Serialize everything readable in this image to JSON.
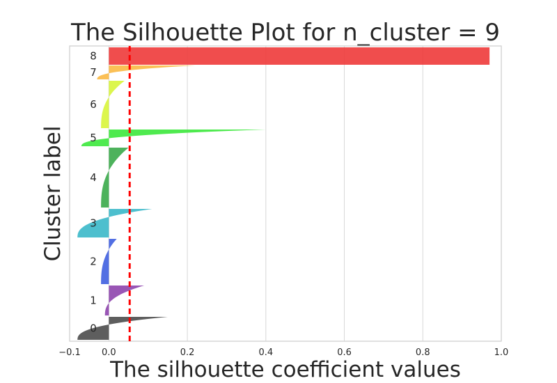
{
  "chart_data": {
    "type": "area",
    "title": "The Silhouette Plot for n_cluster = 9",
    "xlabel": "The silhouette coefficient values",
    "ylabel": "Cluster label",
    "xlim": [
      -0.1,
      1.0
    ],
    "xticks": [
      "−0.1",
      "0.0",
      "0.2",
      "0.4",
      "0.6",
      "0.8",
      "1.0"
    ],
    "xtick_values": [
      -0.1,
      0.0,
      0.2,
      0.4,
      0.6,
      0.8,
      1.0
    ],
    "grid": true,
    "average_silhouette_line": {
      "x": 0.053,
      "color": "#ff0000",
      "style": "dashed"
    },
    "clusters": [
      {
        "label": "0",
        "min": -0.08,
        "max": 0.15,
        "color": "#4d4d4d"
      },
      {
        "label": "1",
        "min": -0.01,
        "max": 0.09,
        "color": "#8e44ad"
      },
      {
        "label": "2",
        "min": -0.02,
        "max": 0.02,
        "color": "#3f5fe0"
      },
      {
        "label": "3",
        "min": -0.08,
        "max": 0.11,
        "color": "#3ab8c9"
      },
      {
        "label": "4",
        "min": -0.02,
        "max": 0.05,
        "color": "#3aaa4a"
      },
      {
        "label": "5",
        "min": -0.07,
        "max": 0.4,
        "color": "#3ce83c"
      },
      {
        "label": "6",
        "min": -0.02,
        "max": 0.04,
        "color": "#d8f53a"
      },
      {
        "label": "7",
        "min": -0.03,
        "max": 0.22,
        "color": "#fbb944"
      },
      {
        "label": "8",
        "min": 0.97,
        "max": 0.97,
        "color": "#ee3a3a"
      }
    ]
  }
}
